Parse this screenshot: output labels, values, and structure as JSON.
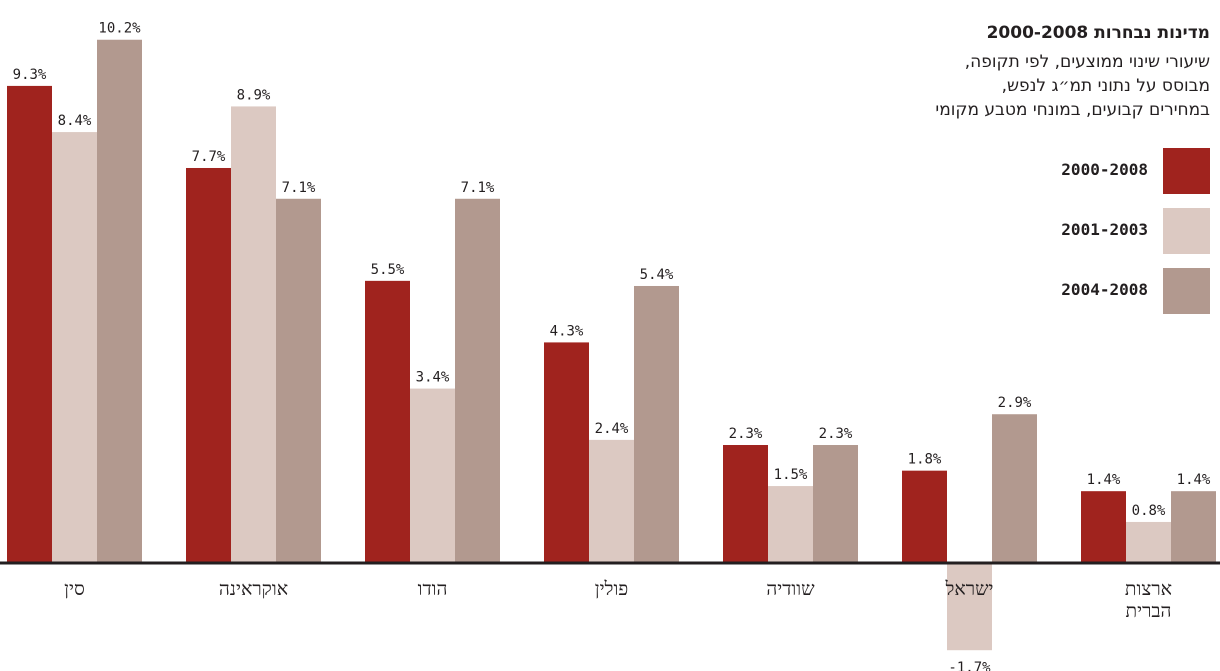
{
  "chart_data": {
    "type": "bar",
    "title": "מדינות נבחרות 2000-2008",
    "subtitle_lines": [
      "שיעורי שינוי ממוצעים, לפי תקופה,",
      "מבוסס על נתוני תמ״ג לנפש,",
      "במחירים קבועים, במונחי מטבע מקומי"
    ],
    "categories": [
      [
        "סין"
      ],
      [
        "אוקראינה"
      ],
      [
        "הודו"
      ],
      [
        "פולין"
      ],
      [
        "שוודיה"
      ],
      [
        "ישראל"
      ],
      [
        "ארצות",
        "הברית"
      ]
    ],
    "series": [
      {
        "name": "2000-2008",
        "color": "#a0231e",
        "values": [
          9.3,
          7.7,
          5.5,
          4.3,
          2.3,
          1.8,
          1.4
        ]
      },
      {
        "name": "2001-2003",
        "color": "#dcc9c2",
        "values": [
          8.4,
          8.9,
          3.4,
          2.4,
          1.5,
          -1.7,
          0.8
        ]
      },
      {
        "name": "2004-2008",
        "color": "#b2998f",
        "values": [
          10.2,
          7.1,
          7.1,
          5.4,
          2.3,
          2.9,
          1.4
        ]
      }
    ],
    "value_suffix": "%",
    "ylim": [
      -2,
      11
    ],
    "grid": false,
    "legend_position": "right",
    "xlabel": "",
    "ylabel": ""
  }
}
